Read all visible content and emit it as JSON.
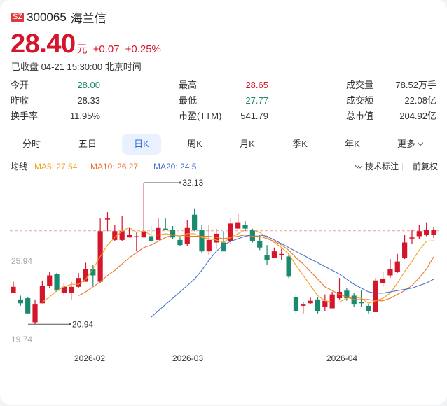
{
  "header": {
    "exchange_badge": "SZ",
    "code": "300065",
    "name": "海兰信",
    "price": "28.40",
    "unit": "元",
    "change": "+0.07",
    "change_pct": "+0.25%",
    "status": "已收盘 04-21 15:30:00 北京时间"
  },
  "stats": [
    {
      "label": "今开",
      "value": "28.00",
      "tone": "down"
    },
    {
      "label": "最高",
      "value": "28.65",
      "tone": "up"
    },
    {
      "label": "成交量",
      "value": "78.52万手",
      "tone": "flat"
    },
    {
      "label": "昨收",
      "value": "28.33",
      "tone": "flat"
    },
    {
      "label": "最低",
      "value": "27.77",
      "tone": "down"
    },
    {
      "label": "成交额",
      "value": "22.08亿",
      "tone": "flat"
    },
    {
      "label": "换手率",
      "value": "11.95%",
      "tone": "flat"
    },
    {
      "label": "市盈(TTM)",
      "value": "541.79",
      "tone": "flat"
    },
    {
      "label": "总市值",
      "value": "204.92亿",
      "tone": "flat"
    }
  ],
  "tabs": [
    {
      "label": "分时",
      "active": false
    },
    {
      "label": "五日",
      "active": false
    },
    {
      "label": "日K",
      "active": true
    },
    {
      "label": "周K",
      "active": false
    },
    {
      "label": "月K",
      "active": false
    },
    {
      "label": "季K",
      "active": false
    },
    {
      "label": "年K",
      "active": false
    },
    {
      "label": "更多",
      "active": false
    }
  ],
  "ma_bar": {
    "label": "均线",
    "ma5": "MA5: 27.54",
    "ma10": "MA10: 26.27",
    "ma20": "MA20: 24.5",
    "tech_label": "技术标注",
    "adjust_label": "前复权"
  },
  "colors": {
    "up": "#d4152b",
    "down": "#1a8a6e",
    "ma5": "#f2a11d",
    "ma10": "#e8762d",
    "ma20": "#4a6ed0",
    "ref_line": "#e9a0a0"
  },
  "chart_data": {
    "type": "candlestick",
    "title": "日K",
    "y_labels": [
      "25.94",
      "19.74"
    ],
    "y_top_faint_label": "",
    "max_marker": "32.13",
    "min_marker": "20.94",
    "prev_close_ref": 28.33,
    "x_labels": [
      {
        "label": "2026-02",
        "index": 10
      },
      {
        "label": "2026-03",
        "index": 23
      },
      {
        "label": "2026-04",
        "index": 45
      }
    ],
    "ylim": [
      19.74,
      32.13
    ],
    "candles": [
      [
        23.4,
        23.9,
        24.3,
        23.5
      ],
      [
        22.9,
        22.6,
        23.2,
        22.4
      ],
      [
        23.0,
        21.8,
        23.1,
        21.8
      ],
      [
        21.1,
        22.5,
        22.9,
        20.94
      ],
      [
        22.6,
        24.0,
        24.4,
        22.6
      ],
      [
        24.0,
        24.8,
        25.1,
        23.8
      ],
      [
        24.9,
        23.6,
        25.0,
        23.5
      ],
      [
        23.4,
        23.9,
        24.2,
        23.2
      ],
      [
        23.4,
        23.9,
        24.3,
        22.9
      ],
      [
        23.9,
        24.6,
        25.0,
        23.8
      ],
      [
        24.3,
        25.3,
        25.8,
        24.3
      ],
      [
        25.3,
        24.8,
        25.6,
        24.0
      ],
      [
        24.3,
        28.3,
        29.3,
        24.2
      ],
      [
        29.3,
        29.3,
        29.8,
        28.3
      ],
      [
        27.6,
        28.3,
        28.8,
        27.5
      ],
      [
        27.6,
        28.3,
        29.5,
        27.5
      ],
      [
        27.8,
        28.0,
        28.6,
        27.8
      ],
      [
        27.9,
        27.9,
        28.2,
        26.7
      ],
      [
        27.8,
        28.3,
        32.13,
        27.8
      ],
      [
        27.9,
        27.5,
        28.7,
        27.4
      ],
      [
        27.6,
        28.6,
        29.3,
        27.6
      ],
      [
        28.5,
        28.4,
        29.3,
        28.4
      ],
      [
        28.4,
        27.8,
        28.7,
        27.7
      ],
      [
        27.6,
        27.2,
        27.8,
        27.1
      ],
      [
        27.3,
        28.6,
        29.2,
        27.1
      ],
      [
        29.6,
        28.4,
        30.1,
        28.3
      ],
      [
        28.4,
        26.7,
        28.8,
        26.6
      ],
      [
        26.7,
        27.6,
        28.8,
        26.4
      ],
      [
        27.4,
        28.1,
        28.5,
        26.9
      ],
      [
        27.4,
        26.7,
        28.3,
        26.7
      ],
      [
        27.5,
        28.9,
        29.3,
        27.3
      ],
      [
        28.5,
        29.0,
        29.7,
        28.6
      ],
      [
        28.8,
        28.5,
        29.1,
        28.3
      ],
      [
        28.4,
        27.5,
        28.5,
        27.4
      ],
      [
        27.5,
        27.0,
        28.0,
        26.8
      ],
      [
        26.4,
        26.0,
        27.2,
        25.6
      ],
      [
        26.2,
        26.7,
        27.0,
        26.2
      ],
      [
        26.4,
        26.5,
        26.9,
        26.0
      ],
      [
        26.3,
        24.7,
        26.5,
        24.6
      ],
      [
        23.1,
        22.0,
        23.3,
        21.8
      ],
      [
        22.4,
        22.5,
        22.7,
        21.8
      ],
      [
        22.6,
        22.8,
        23.1,
        22.5
      ],
      [
        22.9,
        22.0,
        23.1,
        21.8
      ],
      [
        22.3,
        22.8,
        23.3,
        22.0
      ],
      [
        22.2,
        23.3,
        23.5,
        22.2
      ],
      [
        23.0,
        23.5,
        24.6,
        22.9
      ],
      [
        23.6,
        23.0,
        23.8,
        22.8
      ],
      [
        23.2,
        22.5,
        23.4,
        22.3
      ],
      [
        22.7,
        22.6,
        23.6,
        22.3
      ],
      [
        22.4,
        22.0,
        22.5,
        21.8
      ],
      [
        21.9,
        24.4,
        24.6,
        21.9
      ],
      [
        24.2,
        24.5,
        25.1,
        23.9
      ],
      [
        24.8,
        25.3,
        26.1,
        24.6
      ],
      [
        25.1,
        25.9,
        26.5,
        25.0
      ],
      [
        26.2,
        27.4,
        28.0,
        26.1
      ],
      [
        27.8,
        27.8,
        28.4,
        27.3
      ],
      [
        27.9,
        28.3,
        28.8,
        27.7
      ],
      [
        28.0,
        28.4,
        29.0,
        27.9
      ],
      [
        28.0,
        28.4,
        28.65,
        27.77
      ]
    ],
    "ma5": [
      null,
      null,
      null,
      null,
      22.7,
      23.1,
      23.6,
      23.9,
      24.1,
      24.1,
      24.5,
      25.3,
      26.3,
      27.2,
      27.8,
      28.3,
      28.6,
      28.2,
      28.3,
      28.0,
      28.0,
      28.1,
      28.0,
      27.9,
      28.1,
      28.1,
      27.8,
      27.7,
      27.6,
      27.4,
      27.8,
      28.1,
      28.4,
      28.4,
      28.2,
      27.8,
      27.4,
      27.0,
      26.5,
      25.6,
      24.8,
      24.0,
      23.2,
      22.8,
      22.7,
      22.7,
      23.0,
      23.1,
      23.0,
      22.6,
      22.8,
      23.0,
      23.4,
      24.2,
      25.1,
      25.9,
      26.8,
      27.5,
      27.54
    ],
    "ma10": [
      null,
      null,
      null,
      null,
      null,
      null,
      null,
      null,
      null,
      23.2,
      23.5,
      23.9,
      24.3,
      24.8,
      25.2,
      25.7,
      26.2,
      26.6,
      27.0,
      27.2,
      27.5,
      27.8,
      28.0,
      28.0,
      27.9,
      27.9,
      27.9,
      27.9,
      27.8,
      27.7,
      27.8,
      27.9,
      28.0,
      27.9,
      27.9,
      27.7,
      27.5,
      27.2,
      26.8,
      26.2,
      25.7,
      25.1,
      24.5,
      23.9,
      23.6,
      23.3,
      23.1,
      22.9,
      22.9,
      22.9,
      22.8,
      22.8,
      23.0,
      23.3,
      23.6,
      24.0,
      24.6,
      25.3,
      26.27
    ],
    "ma20": [
      null,
      null,
      null,
      null,
      null,
      null,
      null,
      null,
      null,
      null,
      null,
      null,
      null,
      null,
      null,
      null,
      null,
      null,
      null,
      21.5,
      22.0,
      22.5,
      23.0,
      23.5,
      24.0,
      24.5,
      25.2,
      26.0,
      26.7,
      27.2,
      27.5,
      27.7,
      27.9,
      28.0,
      28.0,
      27.9,
      27.6,
      27.3,
      27.0,
      26.7,
      26.4,
      26.1,
      25.8,
      25.5,
      25.2,
      24.9,
      24.5,
      24.1,
      23.8,
      23.5,
      23.4,
      23.4,
      23.5,
      23.6,
      23.7,
      23.8,
      24.0,
      24.2,
      24.5
    ]
  }
}
